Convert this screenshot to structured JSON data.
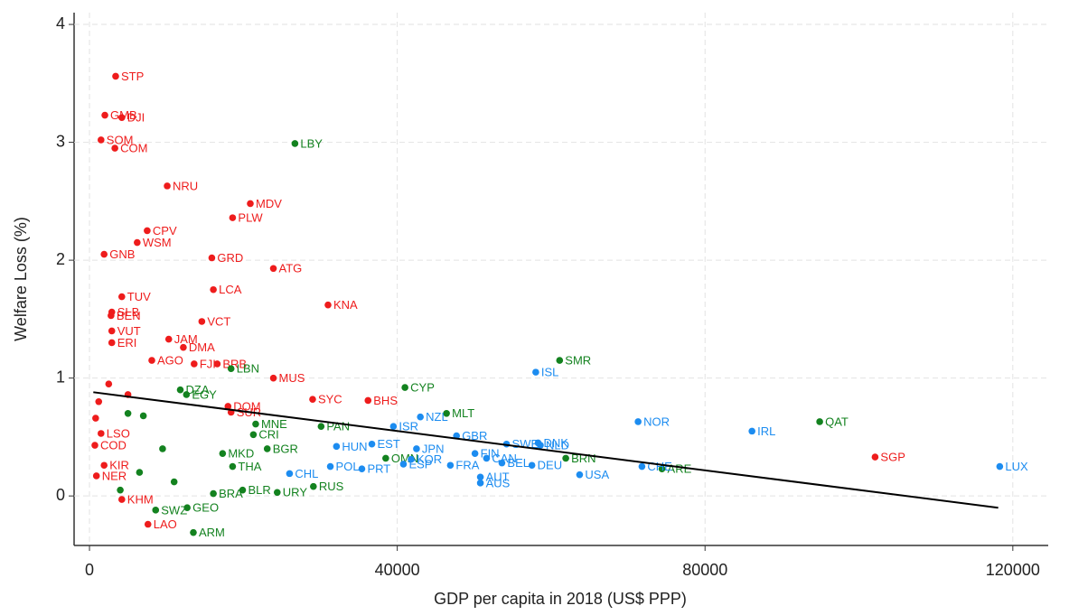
{
  "chart_data": {
    "type": "scatter",
    "xlabel": "GDP per capita in 2018 (US$ PPP)",
    "ylabel": "Welfare Loss (%)",
    "xlim": [
      -2000,
      124600
    ],
    "ylim": [
      -0.42,
      4.1
    ],
    "xticks": [
      0,
      40000,
      80000,
      120000
    ],
    "yticks": [
      0,
      1,
      2,
      3,
      4
    ],
    "grid": true,
    "series": [
      {
        "color": "#ee1c1c",
        "x": [
          3400,
          2000,
          4200,
          1500,
          3300,
          10100,
          20900,
          18600,
          7500,
          6200,
          1900,
          15900,
          23900,
          16100,
          4200,
          31000,
          2900,
          2800,
          14600,
          2900,
          10300,
          2900,
          12200,
          8100,
          13600,
          16600,
          23900,
          29000,
          36200,
          18000,
          18400,
          102100,
          1500,
          700,
          1900,
          900,
          4200,
          7600,
          1200,
          2500,
          800,
          5000
        ],
        "values": [
          3.56,
          3.23,
          3.21,
          3.02,
          2.95,
          2.63,
          2.48,
          2.36,
          2.25,
          2.15,
          2.05,
          2.02,
          1.93,
          1.75,
          1.69,
          1.62,
          1.56,
          1.53,
          1.48,
          1.4,
          1.33,
          1.3,
          1.26,
          1.15,
          1.12,
          1.12,
          1.0,
          0.82,
          0.81,
          0.76,
          0.71,
          0.33,
          0.53,
          0.43,
          0.26,
          0.17,
          -0.03,
          -0.24,
          0.8,
          0.95,
          0.66,
          0.86
        ],
        "labels": [
          "STP",
          "GMB",
          "DJI",
          "SOM",
          "COM",
          "NRU",
          "MDV",
          "PLW",
          "CPV",
          "WSM",
          "GNB",
          "GRD",
          "ATG",
          "LCA",
          "TUV",
          "KNA",
          "SLB",
          "BEN",
          "VCT",
          "VUT",
          "JAM",
          "ERI",
          "DMA",
          "AGO",
          "FJI",
          "BRB",
          "MUS",
          "SYC",
          "BHS",
          "DOM",
          "SUR",
          "SGP",
          "LSO",
          "COD",
          "KIR",
          "NER",
          "KHM",
          "LAO",
          null,
          null,
          null,
          null
        ]
      },
      {
        "color": "#13821f",
        "x": [
          26700,
          61100,
          18400,
          41000,
          11800,
          12600,
          46400,
          94900,
          21600,
          30100,
          21300,
          23100,
          61900,
          74400,
          29100,
          24400,
          19900,
          16100,
          8600,
          12700,
          13500,
          18600,
          38500,
          17300,
          5000,
          7000,
          9500,
          4000,
          6500,
          11000
        ],
        "values": [
          2.99,
          1.15,
          1.08,
          0.92,
          0.9,
          0.86,
          0.7,
          0.63,
          0.61,
          0.59,
          0.52,
          0.4,
          0.32,
          0.23,
          0.08,
          0.03,
          0.05,
          0.02,
          -0.12,
          -0.1,
          -0.31,
          0.25,
          0.32,
          0.36,
          0.7,
          0.68,
          0.4,
          0.05,
          0.2,
          0.12
        ],
        "labels": [
          "LBY",
          "SMR",
          "LBN",
          "CYP",
          "DZA",
          "EGY",
          "MLT",
          "QAT",
          "MNE",
          "PAN",
          "CRI",
          "BGR",
          "BRN",
          "ARE",
          "RUS",
          "URY",
          "BLR",
          "BRA",
          "SWZ",
          "GEO",
          "ARM",
          "THA",
          "OMN",
          "MKD",
          null,
          null,
          null,
          null,
          null,
          null
        ]
      },
      {
        "color": "#1c8cf0",
        "x": [
          58000,
          71300,
          86100,
          43000,
          39500,
          47700,
          36700,
          32100,
          42500,
          54200,
          58300,
          58600,
          50100,
          51600,
          53600,
          57500,
          46900,
          41800,
          40800,
          35400,
          31300,
          26000,
          63700,
          71800,
          118300,
          50800,
          50800
        ],
        "values": [
          1.05,
          0.63,
          0.55,
          0.67,
          0.59,
          0.51,
          0.44,
          0.42,
          0.4,
          0.44,
          0.45,
          0.43,
          0.36,
          0.32,
          0.28,
          0.26,
          0.26,
          0.31,
          0.27,
          0.23,
          0.25,
          0.19,
          0.18,
          0.25,
          0.25,
          0.16,
          0.11
        ],
        "labels": [
          "ISL",
          "NOR",
          "IRL",
          "NZL",
          "ISR",
          "GBR",
          "EST",
          "HUN",
          "JPN",
          "SWE",
          "DNK",
          "NLD",
          "FIN",
          "CAN",
          "BEL",
          "DEU",
          "FRA",
          "KOR",
          "ESP",
          "PRT",
          "POL",
          "CHL",
          "USA",
          "CHE",
          "LUX",
          "AUT",
          "AUS"
        ]
      }
    ],
    "fit": {
      "color": "#000000",
      "x": [
        500,
        118100
      ],
      "values": [
        0.88,
        -0.1
      ]
    }
  }
}
